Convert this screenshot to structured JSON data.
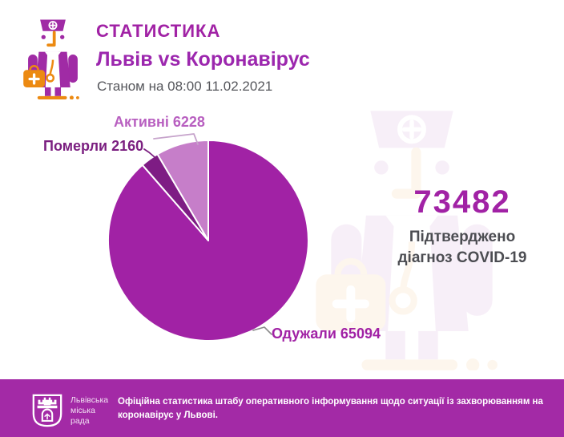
{
  "colors": {
    "primary": "#A122A5",
    "subtitle": "#9C27AE",
    "label_active": "#B85FC0",
    "label_died": "#7B1F80",
    "label_recovered": "#A122A5",
    "dark_text": "#4C4D52",
    "muted_text": "#55565B",
    "icon_purple": "#A02BA5",
    "icon_orange": "#EC8A12",
    "footer_bg": "#A32AA6",
    "callout_gray": "#8B8B8B",
    "callout_active": "#C6A3CB"
  },
  "header": {
    "title": "СТАТИСТИКА",
    "subtitle": "Львів vs Коронавірус",
    "date_line": "Станом на 08:00 11.02.2021"
  },
  "chart_data": {
    "type": "pie",
    "title": "Львів vs Коронавірус",
    "as_of": "08:00 11.02.2021",
    "total": 73482,
    "slices": [
      {
        "key": "recovered",
        "label": "Одужали",
        "value": 65094,
        "color": "#A122A5"
      },
      {
        "key": "died",
        "label": "Померли",
        "value": 2160,
        "color": "#7E1C84"
      },
      {
        "key": "active",
        "label": "Активні",
        "value": 6228,
        "color": "#C67EC9"
      }
    ],
    "legend_position": "callout-labels",
    "start_angle_deg": 0,
    "direction": "clockwise"
  },
  "pie_labels": {
    "active": "Активні 6228",
    "died": "Померли 2160",
    "recovered": "Одужали 65094"
  },
  "summary": {
    "total": "73482",
    "caption_line1": "Підтверджено",
    "caption_line2": "діагноз COVID-19"
  },
  "footer": {
    "logo_lines": [
      "Львівська",
      "міська",
      "рада"
    ],
    "text_line1": "Офіційна статистика штабу оперативного інформування щодо ситуації із захворюванням на",
    "text_line2": "коронавірус у Львові."
  }
}
